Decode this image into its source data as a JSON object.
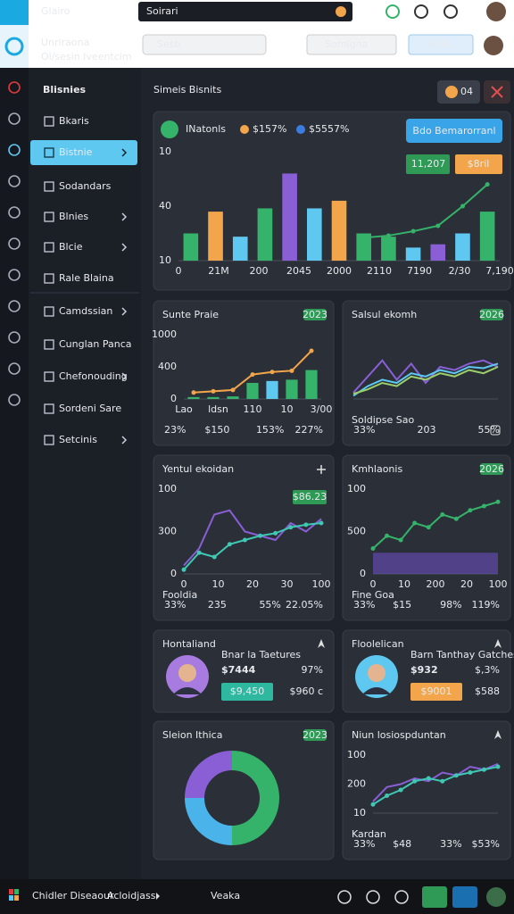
{
  "topbar": {
    "logo": "Glairo",
    "search": "Soirari"
  },
  "header": {
    "title": "Unriraona",
    "subtitle": "Ol/sesin Iveentcim",
    "search": "Sesb",
    "dropdown": "Somigna",
    "button": "Scdo"
  },
  "sidebar": {
    "title": "Blisnies",
    "items": [
      {
        "label": "Bkaris"
      },
      {
        "label": "Bistnie",
        "active": true,
        "arrow": true
      },
      {
        "label": "Sodandars"
      },
      {
        "label": "Blnies",
        "arrow": true
      },
      {
        "label": "Blcie",
        "arrow": true
      },
      {
        "label": "Rale Blaina"
      },
      {
        "label": "Camdssian",
        "arrow": true
      },
      {
        "label": "Cunglan Panca"
      },
      {
        "label": "Chefonouding",
        "arrow": true
      },
      {
        "label": "Sordeni Sare"
      },
      {
        "label": "Setcinis",
        "arrow": true
      }
    ]
  },
  "main": {
    "title": "Simeis Bisnits",
    "toggle": "04"
  },
  "overview": {
    "title": "INatonls",
    "stat1": "$157%",
    "stat2": "$5557%",
    "button": "Bdo Bemarorranl",
    "badge1": "11,207",
    "badge2": "$8ril",
    "chart": {
      "ylim": [
        0,
        100
      ],
      "y_labels": [
        "10",
        "40",
        "10"
      ],
      "x_labels": [
        "0",
        "21M",
        "200",
        "2045",
        "2000",
        "2110",
        "7190",
        "2/30",
        "7,190"
      ],
      "bars": {
        "values": [
          25,
          45,
          22,
          48,
          80,
          48,
          55,
          25,
          22,
          12,
          15,
          25,
          45
        ],
        "colors": [
          "#35b36a",
          "#f2a54a",
          "#5ec8f0",
          "#35b36a",
          "#8a5fd6",
          "#5ec8f0",
          "#f2a54a",
          "#35b36a",
          "#35b36a",
          "#5ec8f0",
          "#8a5fd6",
          "#5ec8f0",
          "#35b36a"
        ]
      },
      "lines": [
        {
          "color": "#35b36a",
          "dots": true,
          "values": [
            null,
            null,
            null,
            null,
            null,
            null,
            null,
            21,
            23,
            27,
            32,
            50,
            70
          ]
        }
      ]
    }
  },
  "cards": [
    {
      "kind": "chart",
      "title": "Sunte Praie",
      "badge": "2023",
      "caption": null,
      "chart": {
        "ylim": [
          0,
          100
        ],
        "y_labels": [
          "1000",
          "400",
          "0"
        ],
        "x_labels": [
          "Lao",
          "ldsn",
          "110",
          "10",
          "3/00"
        ],
        "bars": {
          "values": [
            3,
            3,
            4,
            25,
            28,
            30,
            45
          ],
          "colors": [
            "#35b36a",
            "#35b36a",
            "#35b36a",
            "#35b36a",
            "#5ec8f0",
            "#35b36a",
            "#35b36a"
          ]
        },
        "lines": [
          {
            "color": "#f2a54a",
            "dots": true,
            "values": [
              10,
              12,
              14,
              38,
              42,
              44,
              75
            ]
          }
        ]
      },
      "stats": [
        {
          "text": "23%",
          "color": "#5ec8f0"
        },
        {
          "text": "$150",
          "color": "#ffffff"
        },
        {
          "text": "153%",
          "color": "#35b36a"
        },
        {
          "text": "227%",
          "color": "#f2a54a"
        }
      ]
    },
    {
      "kind": "chart",
      "title": "Salsul ekomh",
      "badge": "2026",
      "caption": "Soldipse Sao",
      "chart": {
        "ylim": [
          0,
          100
        ],
        "y_labels": [],
        "x_labels": [],
        "lines": [
          {
            "color": "#8a5fd6",
            "values": [
              10,
              35,
              60,
              30,
              55,
              25,
              50,
              45,
              55,
              60,
              50
            ]
          },
          {
            "color": "#5ec8f0",
            "values": [
              5,
              20,
              30,
              25,
              40,
              35,
              45,
              40,
              50,
              48,
              55
            ]
          },
          {
            "color": "#9bd06a",
            "values": [
              8,
              15,
              25,
              20,
              35,
              30,
              40,
              35,
              45,
              40,
              50
            ]
          }
        ]
      },
      "stats": [
        {
          "text": "33%",
          "color": "#5ec8f0"
        },
        {
          "text": "203",
          "color": "#ffffff"
        },
        {
          "text": "55%",
          "color": "#35b36a"
        }
      ]
    },
    {
      "kind": "chart",
      "title": "Yentul ekoidan",
      "icon": "plus",
      "value_badge": "$86.23",
      "caption": "Fooldia",
      "chart": {
        "ylim": [
          0,
          100
        ],
        "y_labels": [
          "100",
          "300",
          "0"
        ],
        "x_labels": [
          "0",
          "10",
          "20",
          "30",
          "100"
        ],
        "lines": [
          {
            "color": "#8a5fd6",
            "values": [
              10,
              30,
              70,
              75,
              50,
              45,
              40,
              60,
              50,
              65
            ]
          },
          {
            "color": "#3fc8b4",
            "dots": true,
            "values": [
              5,
              25,
              20,
              35,
              40,
              45,
              48,
              55,
              58,
              60
            ]
          }
        ]
      },
      "stats": [
        {
          "text": "33%",
          "color": "#5ec8f0"
        },
        {
          "text": "235",
          "color": "#ffffff"
        },
        {
          "text": "55%",
          "color": "#35b36a"
        },
        {
          "text": "22.05%",
          "color": "#35b36a"
        }
      ]
    },
    {
      "kind": "chart",
      "title": "Kmhlaonis",
      "badge": "2026",
      "caption": "Fine Goa",
      "chart": {
        "ylim": [
          0,
          100
        ],
        "y_labels": [
          "100",
          "500",
          "0"
        ],
        "x_labels": [
          "0",
          "10",
          "200",
          "20",
          "100"
        ],
        "area": {
          "color": "#6a4fc0",
          "values": [
            25,
            25,
            25,
            25,
            25,
            25,
            25,
            25,
            25,
            25
          ]
        },
        "lines": [
          {
            "color": "#35b36a",
            "dots": true,
            "values": [
              30,
              45,
              40,
              60,
              55,
              70,
              65,
              75,
              80,
              85
            ]
          }
        ]
      },
      "stats": [
        {
          "text": "33%",
          "color": "#8a5fd6"
        },
        {
          "text": "$15",
          "color": "#ffffff"
        },
        {
          "text": "98%",
          "color": "#f2a54a"
        },
        {
          "text": "119%",
          "color": "#f2a54a"
        }
      ]
    },
    {
      "kind": "profile",
      "title": "Hontaliand",
      "icon": "star",
      "avatar_color": "#a77be0",
      "name": "Bnar la Taetures",
      "value": "$7444",
      "pct": "97%",
      "button": "$9,450",
      "button_color": "#2fb8a0",
      "value2": "$960 c"
    },
    {
      "kind": "profile",
      "title": "Floolelican",
      "icon": "star",
      "avatar_color": "#5ec8f0",
      "name": "Barn Tanthay Gatches",
      "value": "$932",
      "pct": "$,3%",
      "button": "$9001",
      "button_color": "#f2a54a",
      "value2": "$588"
    },
    {
      "kind": "donut",
      "title": "Sleion Ithica",
      "badge": "2023",
      "values": [
        50,
        25,
        25
      ],
      "colors": [
        "#35b36a",
        "#4ab4ea",
        "#8a5fd6"
      ]
    },
    {
      "kind": "chart",
      "title": "Niun losiospduntan",
      "icon": "star",
      "caption": "Kardan",
      "chart": {
        "ylim": [
          0,
          100
        ],
        "y_labels": [
          "100",
          "200",
          "10"
        ],
        "x_labels": [],
        "lines": [
          {
            "color": "#8a5fd6",
            "values": [
              20,
              45,
              50,
              60,
              55,
              70,
              65,
              80,
              75,
              85
            ]
          },
          {
            "color": "#3fc8b4",
            "dots": true,
            "values": [
              15,
              30,
              40,
              55,
              60,
              55,
              65,
              70,
              75,
              80
            ]
          }
        ]
      },
      "stats": [
        {
          "text": "33%",
          "color": "#5ec8f0"
        },
        {
          "text": "$48",
          "color": "#ffffff"
        },
        {
          "text": "33%",
          "color": "#f07a8a"
        },
        {
          "text": "$53%",
          "color": "#5ec8f0"
        }
      ]
    }
  ],
  "bottombar": {
    "brand": "Chidler Diseaour",
    "menu": "Acloidjass",
    "link": "Veaka"
  }
}
